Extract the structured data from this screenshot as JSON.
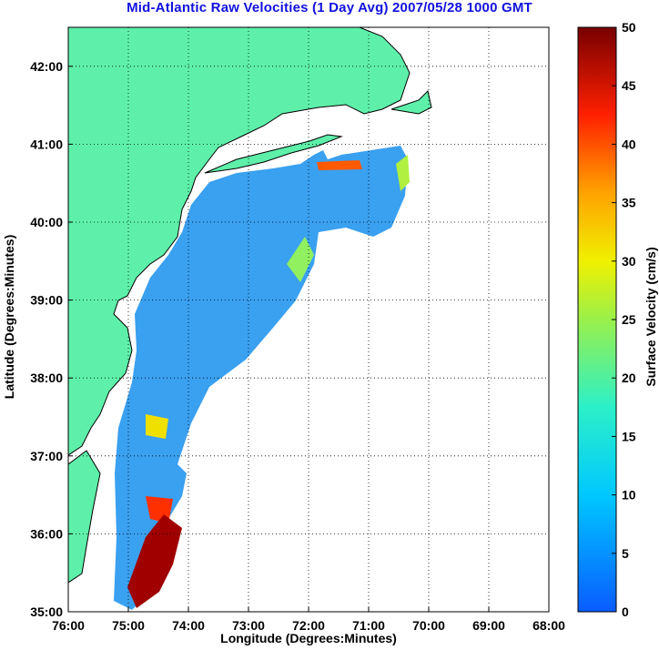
{
  "title": "Mid-Atlantic Raw Velocities (1 Day Avg) 2007/05/28 1000 GMT",
  "map": {
    "xlabel": "Longitude (Degrees:Minutes)",
    "ylabel": "Latitude (Degrees:Minutes)",
    "lon_range": [
      -76,
      -68
    ],
    "lat_range": [
      35,
      42.5
    ],
    "x_ticks": [
      "76:00",
      "75:00",
      "74:00",
      "73:00",
      "72:00",
      "71:00",
      "70:00",
      "69:00",
      "68:00"
    ],
    "y_ticks": [
      "35:00",
      "36:00",
      "37:00",
      "38:00",
      "39:00",
      "40:00",
      "41:00",
      "42:00"
    ],
    "land_color": "#5ef0aa",
    "coast_color": "#000000",
    "bathymetry_color": "#999999",
    "grid": "dotted"
  },
  "colorbar": {
    "label": "Surface Velocity (cm/s)",
    "ticks": [
      "0",
      "5",
      "10",
      "15",
      "20",
      "25",
      "30",
      "35",
      "40",
      "45",
      "50"
    ],
    "range": [
      0,
      50
    ],
    "colormap": "jet"
  }
}
